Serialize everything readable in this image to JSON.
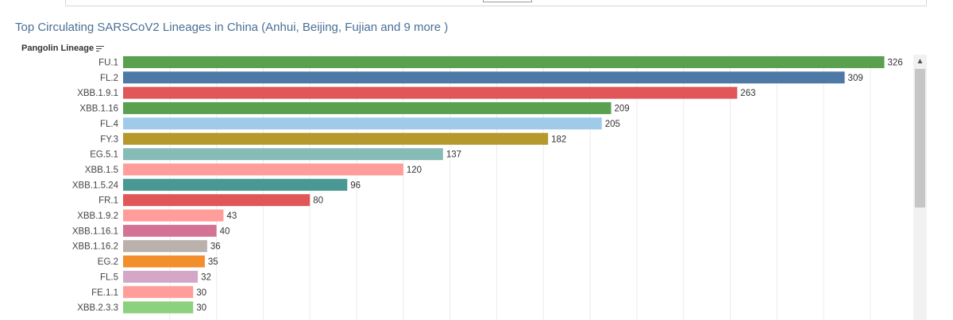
{
  "chart_data": {
    "type": "bar",
    "orientation": "horizontal",
    "title": "Top Circulating SARSCoV2 Lineages in China (Anhui, Beijing, Fujian and 9 more )",
    "ylabel": "Pangolin Lineage",
    "xlabel": "",
    "xlim": [
      0,
      335
    ],
    "grid": true,
    "legend": "none",
    "categories": [
      "FU.1",
      "FL.2",
      "XBB.1.9.1",
      "XBB.1.16",
      "FL.4",
      "FY.3",
      "EG.5.1",
      "XBB.1.5",
      "XBB.1.5.24",
      "FR.1",
      "XBB.1.9.2",
      "XBB.1.16.1",
      "XBB.1.16.2",
      "EG.2",
      "FL.5",
      "FE.1.1",
      "XBB.2.3.3"
    ],
    "values": [
      326,
      309,
      263,
      209,
      205,
      182,
      137,
      120,
      96,
      80,
      43,
      40,
      36,
      35,
      32,
      30,
      30
    ],
    "colors": [
      "#59a14f",
      "#4e79a7",
      "#e15759",
      "#59a14f",
      "#a0cbe8",
      "#b6992d",
      "#86bcb6",
      "#ff9d9a",
      "#499894",
      "#e15759",
      "#ff9d9a",
      "#d37295",
      "#bab0ac",
      "#f28e2b",
      "#d4a6c8",
      "#ff9d9a",
      "#8cd17d"
    ]
  },
  "scrollbar": {
    "up_icon": "chevron-up-icon"
  },
  "sort_icon": "sort-descending-icon"
}
